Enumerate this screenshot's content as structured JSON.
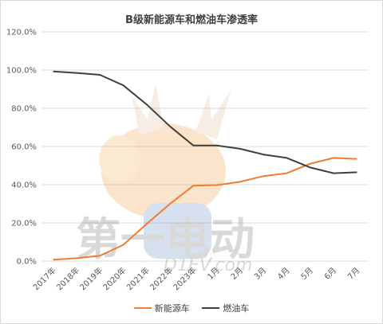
{
  "chart_data": {
    "type": "line",
    "title": "B级新能源车和燃油车渗透率",
    "categories": [
      "2017年",
      "2018年",
      "2019年",
      "2020年",
      "2021年",
      "2022年",
      "2023年",
      "1月",
      "2月",
      "3月",
      "4月",
      "5月",
      "6月",
      "7月"
    ],
    "yticks": [
      "0.0%",
      "20.0%",
      "40.0%",
      "60.0%",
      "80.0%",
      "100.0%",
      "120.0%"
    ],
    "ylim": [
      0,
      120
    ],
    "grid": true,
    "legend_position": "bottom",
    "series": [
      {
        "name": "新能源车",
        "color": "#ed7d31",
        "values": [
          0.7,
          1.5,
          2.8,
          8.5,
          19.5,
          30.0,
          39.5,
          39.8,
          41.5,
          44.5,
          46.0,
          51.0,
          54.0,
          53.5
        ]
      },
      {
        "name": "燃油车",
        "color": "#404040",
        "values": [
          99.3,
          98.5,
          97.5,
          92.0,
          82.0,
          70.5,
          60.5,
          60.5,
          58.8,
          55.8,
          54.0,
          49.0,
          46.0,
          46.5
        ]
      }
    ]
  },
  "watermark": {
    "text": "第一电动",
    "subtext": "D1EV.com"
  }
}
